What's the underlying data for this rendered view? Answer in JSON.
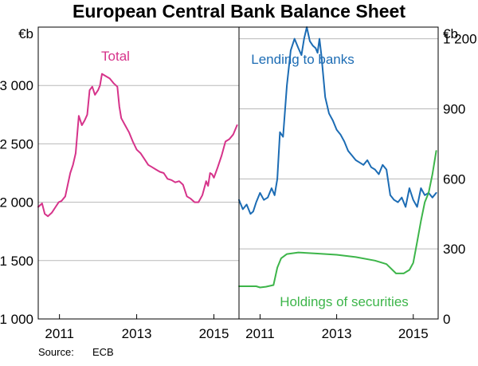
{
  "chart_data": {
    "type": "line",
    "title": "European Central Bank Balance Sheet",
    "source_label": "Source:",
    "source_value": "ECB",
    "grid": true,
    "panels": [
      {
        "id": "left",
        "y_unit": "€b",
        "ylim": [
          1000,
          3500
        ],
        "yticks": [
          1000,
          1500,
          2000,
          2500,
          3000
        ],
        "ytick_labels": [
          "1 000",
          "1 500",
          "2 000",
          "2 500",
          "3 000"
        ],
        "xlim": [
          2010.45,
          2015.65
        ],
        "xticks": [
          2011,
          2013,
          2015
        ],
        "xtick_labels": [
          "2011",
          "2013",
          "2015"
        ],
        "series": [
          {
            "name": "Total",
            "color": "#d6338a",
            "x": [
              2010.45,
              2010.55,
              2010.62,
              2010.7,
              2010.8,
              2010.9,
              2010.98,
              2011.05,
              2011.15,
              2011.28,
              2011.35,
              2011.42,
              2011.5,
              2011.58,
              2011.65,
              2011.72,
              2011.78,
              2011.85,
              2011.92,
              2012.0,
              2012.05,
              2012.1,
              2012.2,
              2012.3,
              2012.4,
              2012.5,
              2012.55,
              2012.6,
              2012.7,
              2012.8,
              2012.9,
              2013.0,
              2013.1,
              2013.2,
              2013.3,
              2013.4,
              2013.5,
              2013.6,
              2013.7,
              2013.8,
              2013.9,
              2014.0,
              2014.1,
              2014.2,
              2014.3,
              2014.4,
              2014.5,
              2014.6,
              2014.7,
              2014.8,
              2014.85,
              2014.9,
              2014.95,
              2015.0,
              2015.1,
              2015.2,
              2015.3,
              2015.4,
              2015.5,
              2015.6
            ],
            "values": [
              1960,
              1990,
              1900,
              1880,
              1910,
              1960,
              2000,
              2010,
              2050,
              2250,
              2320,
              2420,
              2740,
              2660,
              2700,
              2750,
              2960,
              2990,
              2920,
              2960,
              3000,
              3100,
              3080,
              3060,
              3020,
              2990,
              2820,
              2720,
              2660,
              2600,
              2520,
              2450,
              2420,
              2370,
              2320,
              2300,
              2280,
              2260,
              2250,
              2200,
              2190,
              2170,
              2180,
              2150,
              2050,
              2030,
              2000,
              2000,
              2060,
              2180,
              2140,
              2250,
              2240,
              2210,
              2300,
              2400,
              2520,
              2540,
              2580,
              2660
            ]
          }
        ]
      },
      {
        "id": "right",
        "y_unit": "€b",
        "ylim": [
          0,
          1250
        ],
        "yticks": [
          0,
          300,
          600,
          900,
          1200
        ],
        "ytick_labels": [
          "0",
          "300",
          "600",
          "900",
          "1 200"
        ],
        "xlim": [
          2010.45,
          2015.65
        ],
        "xticks": [
          2011,
          2013,
          2015
        ],
        "xtick_labels": [
          "2011",
          "2013",
          "2015"
        ],
        "series": [
          {
            "name": "Lending to banks",
            "color": "#1c6cb4",
            "x": [
              2010.45,
              2010.55,
              2010.65,
              2010.75,
              2010.82,
              2010.9,
              2011.0,
              2011.1,
              2011.2,
              2011.3,
              2011.38,
              2011.45,
              2011.52,
              2011.6,
              2011.7,
              2011.8,
              2011.9,
              2012.0,
              2012.08,
              2012.15,
              2012.22,
              2012.3,
              2012.38,
              2012.45,
              2012.5,
              2012.55,
              2012.6,
              2012.7,
              2012.8,
              2012.9,
              2013.0,
              2013.1,
              2013.2,
              2013.3,
              2013.4,
              2013.5,
              2013.6,
              2013.7,
              2013.8,
              2013.9,
              2014.0,
              2014.1,
              2014.2,
              2014.3,
              2014.4,
              2014.5,
              2014.6,
              2014.7,
              2014.8,
              2014.9,
              2015.0,
              2015.1,
              2015.2,
              2015.3,
              2015.4,
              2015.5,
              2015.6
            ],
            "values": [
              510,
              470,
              490,
              450,
              460,
              500,
              540,
              510,
              520,
              560,
              530,
              600,
              800,
              780,
              1000,
              1150,
              1200,
              1160,
              1130,
              1200,
              1250,
              1190,
              1170,
              1160,
              1140,
              1200,
              1130,
              950,
              880,
              850,
              810,
              790,
              760,
              720,
              700,
              680,
              670,
              660,
              680,
              650,
              640,
              620,
              660,
              640,
              530,
              510,
              500,
              520,
              480,
              560,
              510,
              480,
              560,
              530,
              540,
              520,
              540
            ]
          },
          {
            "name": "Holdings of securities",
            "color": "#3db54a",
            "x": [
              2010.45,
              2010.7,
              2010.9,
              2011.0,
              2011.15,
              2011.35,
              2011.45,
              2011.55,
              2011.7,
              2012.0,
              2012.5,
              2013.0,
              2013.5,
              2014.0,
              2014.3,
              2014.55,
              2014.75,
              2014.9,
              2015.0,
              2015.1,
              2015.2,
              2015.3,
              2015.4,
              2015.5,
              2015.6
            ],
            "values": [
              140,
              140,
              140,
              135,
              138,
              145,
              220,
              260,
              278,
              285,
              280,
              275,
              265,
              250,
              235,
              195,
              195,
              210,
              240,
              330,
              420,
              500,
              540,
              620,
              720
            ]
          }
        ]
      }
    ]
  }
}
